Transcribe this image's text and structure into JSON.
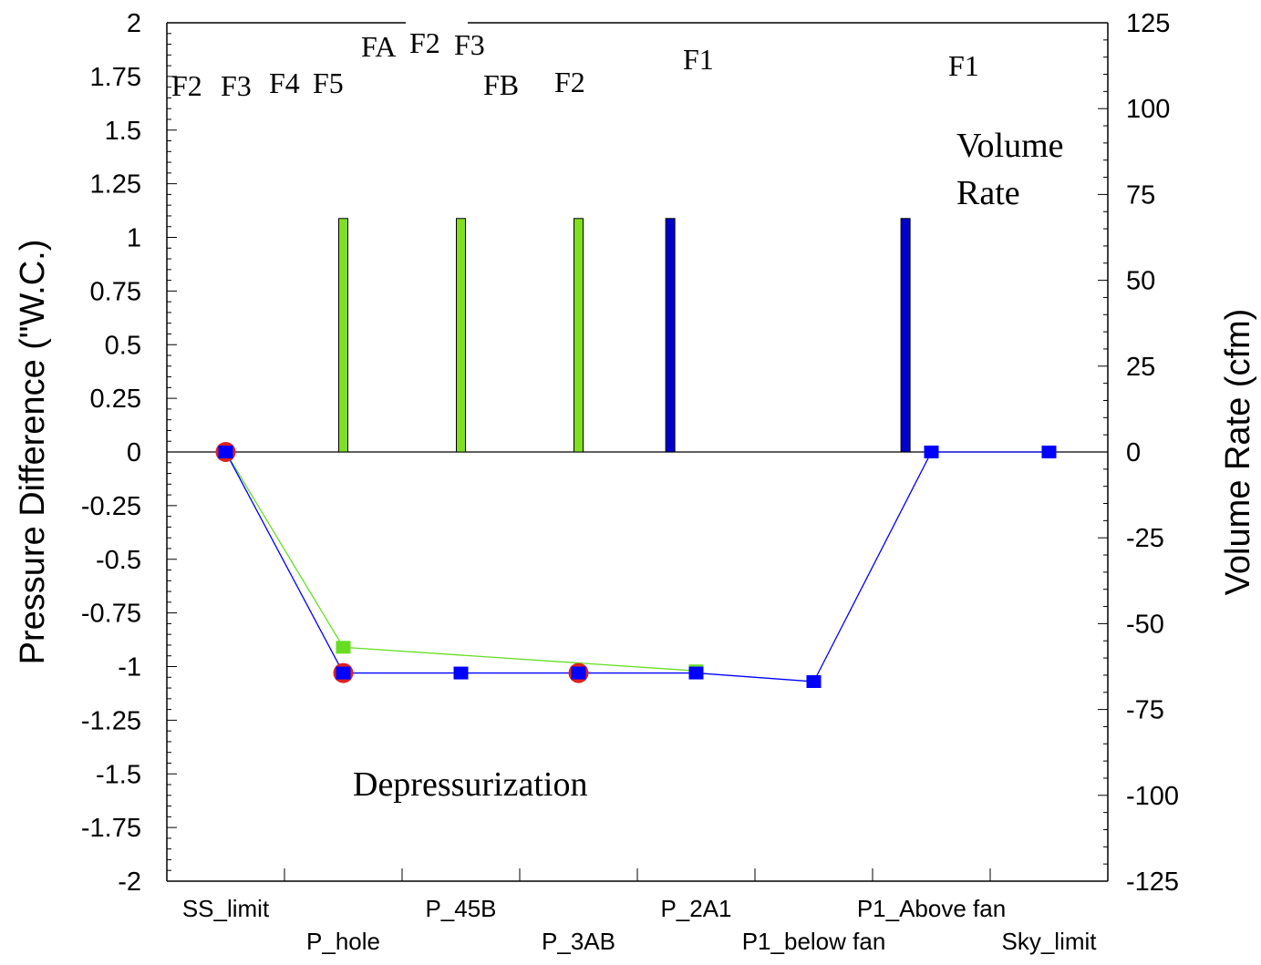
{
  "chart_data": {
    "type": "bar",
    "ylabel_left": "Pressure  Difference (\"W.C.)",
    "ylabel_right": "Volume Rate (cfm)",
    "ylim_left": [
      -2,
      2
    ],
    "ylim_right": [
      -125,
      125
    ],
    "yticks_left": [
      "2",
      "1.75",
      "1.5",
      "1.25",
      "1",
      "0.75",
      "0.5",
      "0.25",
      "0",
      "-0.25",
      "-0.5",
      "-0.75",
      "-1",
      "-1.25",
      "-1.5",
      "-1.75",
      "-2"
    ],
    "yticks_right": [
      "125",
      "100",
      "75",
      "50",
      "25",
      "0",
      "-25",
      "-50",
      "-75",
      "-100",
      "-125"
    ],
    "categories": [
      "SS_limit",
      "P_hole",
      "P_45B",
      "P_3AB",
      "P_2A1",
      "P1_below fan",
      "P1_Above fan",
      "Sky_limit"
    ],
    "annotations": {
      "volume_rate": [
        "Volume",
        "Rate"
      ],
      "depressurization": "Depressurization",
      "flow_labels": [
        "F2",
        "F3",
        "F4",
        "F5",
        "FA",
        "F2",
        "F3",
        "FB",
        "F2",
        "F1",
        "F1"
      ]
    },
    "bars": [
      {
        "x": 1.5,
        "value": 68,
        "color": "#80e020"
      },
      {
        "x": 2.5,
        "value": 68,
        "color": "#80e020"
      },
      {
        "x": 3.5,
        "value": 68,
        "color": "#80e020"
      },
      {
        "x": 4.28,
        "value": 68,
        "color": "#0000cc"
      },
      {
        "x": 6.28,
        "value": 68,
        "color": "#0000cc"
      }
    ],
    "series": [
      {
        "color": "#66dd22",
        "x": [
          0.5,
          1.5,
          4.5
        ],
        "y": [
          0,
          -0.91,
          -1.02
        ]
      },
      {
        "color": "#0000ff",
        "x": [
          0.5,
          1.5,
          2.5,
          3.5,
          4.5,
          5.5,
          6.5,
          7.5
        ],
        "y": [
          0,
          -1.03,
          -1.03,
          -1.03,
          -1.03,
          -1.07,
          0,
          0
        ]
      }
    ],
    "open_markers": {
      "color": "#dd2222",
      "x": [
        0.5,
        1.5,
        3.5
      ],
      "y": [
        0,
        -1.03,
        -1.03
      ]
    },
    "grid": false
  }
}
